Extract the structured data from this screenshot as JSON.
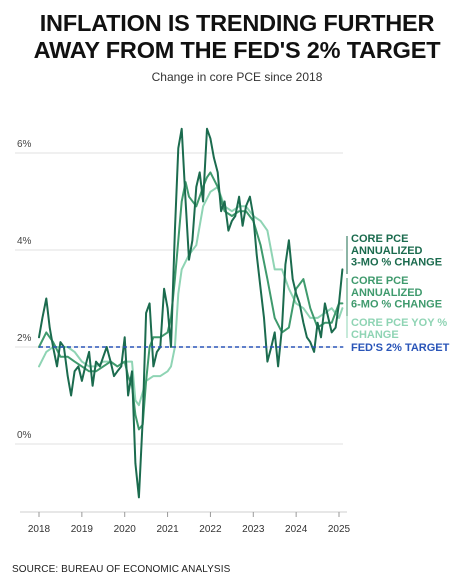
{
  "header": {
    "title_line1": "INFLATION IS TRENDING FURTHER",
    "title_line2": "AWAY FROM THE FED'S 2% TARGET",
    "subtitle": "Change in core PCE since 2018"
  },
  "footer": {
    "source": "SOURCE: BUREAU OF ECONOMIC ANALYSIS"
  },
  "chart_data": {
    "type": "line",
    "title": "INFLATION IS TRENDING FURTHER AWAY FROM THE FED'S 2% TARGET",
    "subtitle": "Change in core PCE since 2018",
    "xlabel": "",
    "ylabel": "",
    "xlim": [
      2018,
      2025.1
    ],
    "ylim": [
      -1.2,
      7.0
    ],
    "grid": true,
    "legend": "right, direct labels",
    "x_ticks": [
      {
        "value": 2018,
        "label": "2018"
      },
      {
        "value": 2019,
        "label": "2019"
      },
      {
        "value": 2020,
        "label": "2020"
      },
      {
        "value": 2021,
        "label": "2021"
      },
      {
        "value": 2022,
        "label": "2022"
      },
      {
        "value": 2023,
        "label": "2023"
      },
      {
        "value": 2024,
        "label": "2024"
      },
      {
        "value": 2025,
        "label": "2025"
      }
    ],
    "y_ticks": [
      {
        "value": 0,
        "label": "0%"
      },
      {
        "value": 2,
        "label": "2%"
      },
      {
        "value": 4,
        "label": "4%"
      },
      {
        "value": 6,
        "label": "6%"
      }
    ],
    "series": [
      {
        "name": "CORE PCE ANNUALIZED 3-MO % CHANGE",
        "label_lines": [
          "CORE PCE",
          "ANNUALIZED",
          "3-MO % CHANGE"
        ],
        "color": "#1b6b4e",
        "width": 2.0,
        "x": [
          2018.0,
          2018.08,
          2018.17,
          2018.25,
          2018.33,
          2018.42,
          2018.5,
          2018.58,
          2018.67,
          2018.75,
          2018.83,
          2018.92,
          2019.0,
          2019.08,
          2019.17,
          2019.25,
          2019.33,
          2019.42,
          2019.5,
          2019.58,
          2019.67,
          2019.75,
          2019.83,
          2019.92,
          2020.0,
          2020.08,
          2020.17,
          2020.25,
          2020.33,
          2020.42,
          2020.5,
          2020.58,
          2020.67,
          2020.75,
          2020.83,
          2020.92,
          2021.0,
          2021.08,
          2021.17,
          2021.25,
          2021.33,
          2021.42,
          2021.5,
          2021.58,
          2021.67,
          2021.75,
          2021.83,
          2021.92,
          2022.0,
          2022.08,
          2022.17,
          2022.25,
          2022.33,
          2022.42,
          2022.5,
          2022.58,
          2022.67,
          2022.75,
          2022.83,
          2022.92,
          2023.0,
          2023.08,
          2023.17,
          2023.25,
          2023.33,
          2023.42,
          2023.5,
          2023.58,
          2023.67,
          2023.75,
          2023.83,
          2023.92,
          2024.0,
          2024.08,
          2024.17,
          2024.25,
          2024.33,
          2024.42,
          2024.5,
          2024.58,
          2024.67,
          2024.75,
          2024.83,
          2024.92,
          2025.0,
          2025.08
        ],
        "values": [
          2.2,
          2.6,
          3.0,
          2.4,
          2.0,
          1.6,
          2.1,
          2.0,
          1.4,
          1.0,
          1.5,
          1.6,
          1.3,
          1.6,
          1.9,
          1.2,
          1.7,
          1.6,
          1.8,
          2.0,
          1.7,
          1.4,
          1.5,
          1.6,
          2.2,
          1.0,
          1.5,
          -0.4,
          -1.1,
          0.5,
          2.7,
          2.9,
          1.6,
          1.9,
          2.0,
          3.2,
          2.8,
          2.0,
          4.4,
          6.1,
          6.5,
          5.0,
          3.8,
          4.2,
          5.3,
          5.6,
          5.0,
          6.5,
          6.3,
          5.9,
          5.6,
          4.8,
          5.0,
          4.4,
          4.6,
          4.7,
          5.1,
          4.5,
          4.9,
          5.1,
          4.7,
          3.9,
          3.2,
          2.6,
          1.7,
          2.0,
          2.3,
          1.6,
          2.4,
          3.7,
          4.2,
          3.4,
          3.1,
          2.9,
          2.5,
          2.2,
          2.1,
          1.9,
          2.5,
          2.2,
          2.9,
          2.6,
          2.3,
          2.4,
          2.9,
          3.6
        ]
      },
      {
        "name": "CORE PCE ANNUALIZED 6-MO % CHANGE",
        "label_lines": [
          "CORE PCE",
          "ANNUALIZED",
          "6-MO % CHANGE"
        ],
        "color": "#3f9a6d",
        "width": 2.0,
        "x": [
          2018.0,
          2018.17,
          2018.33,
          2018.5,
          2018.67,
          2018.83,
          2019.0,
          2019.17,
          2019.33,
          2019.5,
          2019.67,
          2019.83,
          2020.0,
          2020.08,
          2020.17,
          2020.25,
          2020.33,
          2020.42,
          2020.5,
          2020.58,
          2020.67,
          2020.83,
          2021.0,
          2021.08,
          2021.17,
          2021.25,
          2021.33,
          2021.42,
          2021.5,
          2021.67,
          2021.83,
          2021.92,
          2022.0,
          2022.17,
          2022.33,
          2022.5,
          2022.67,
          2022.83,
          2023.0,
          2023.17,
          2023.33,
          2023.5,
          2023.67,
          2023.83,
          2024.0,
          2024.17,
          2024.33,
          2024.5,
          2024.67,
          2024.83,
          2025.0,
          2025.08
        ],
        "values": [
          2.0,
          2.3,
          2.1,
          1.8,
          1.8,
          1.7,
          1.6,
          1.5,
          1.5,
          1.6,
          1.7,
          1.6,
          1.7,
          1.4,
          1.2,
          0.6,
          0.3,
          0.4,
          1.3,
          2.0,
          2.2,
          2.2,
          2.3,
          2.6,
          3.4,
          4.2,
          5.0,
          5.4,
          5.1,
          4.9,
          5.3,
          5.5,
          5.6,
          5.3,
          4.8,
          4.7,
          4.8,
          4.8,
          4.6,
          4.1,
          3.4,
          2.6,
          2.3,
          2.4,
          3.2,
          3.4,
          2.8,
          2.4,
          2.5,
          2.5,
          2.9,
          2.9
        ]
      },
      {
        "name": "CORE PCE YOY % CHANGE",
        "label_lines": [
          "CORE PCE YOY %",
          "CHANGE"
        ],
        "color": "#8fd4b4",
        "width": 2.0,
        "x": [
          2018.0,
          2018.17,
          2018.33,
          2018.5,
          2018.67,
          2018.83,
          2019.0,
          2019.17,
          2019.33,
          2019.5,
          2019.67,
          2019.83,
          2020.0,
          2020.17,
          2020.25,
          2020.33,
          2020.5,
          2020.67,
          2020.83,
          2021.0,
          2021.08,
          2021.17,
          2021.25,
          2021.33,
          2021.5,
          2021.67,
          2021.83,
          2022.0,
          2022.17,
          2022.33,
          2022.5,
          2022.67,
          2022.83,
          2023.0,
          2023.17,
          2023.33,
          2023.5,
          2023.67,
          2023.83,
          2024.0,
          2024.17,
          2024.33,
          2024.5,
          2024.67,
          2024.83,
          2025.0,
          2025.08
        ],
        "values": [
          1.6,
          1.9,
          2.0,
          2.0,
          2.0,
          1.9,
          1.7,
          1.6,
          1.6,
          1.7,
          1.7,
          1.6,
          1.7,
          1.7,
          0.9,
          0.8,
          1.3,
          1.4,
          1.4,
          1.5,
          1.6,
          2.0,
          3.1,
          3.6,
          3.9,
          4.1,
          4.9,
          5.2,
          5.3,
          4.9,
          4.8,
          4.9,
          4.9,
          4.7,
          4.6,
          4.4,
          3.6,
          3.6,
          3.2,
          2.9,
          2.8,
          2.6,
          2.6,
          2.7,
          2.8,
          2.6,
          2.8
        ]
      },
      {
        "name": "FED'S 2% TARGET",
        "label_lines": [
          "FED'S 2% TARGET"
        ],
        "color": "#2a55b8",
        "width": 1.6,
        "dashed": true,
        "x": [
          2018.0,
          2025.1
        ],
        "values": [
          2.0,
          2.0
        ]
      }
    ]
  }
}
